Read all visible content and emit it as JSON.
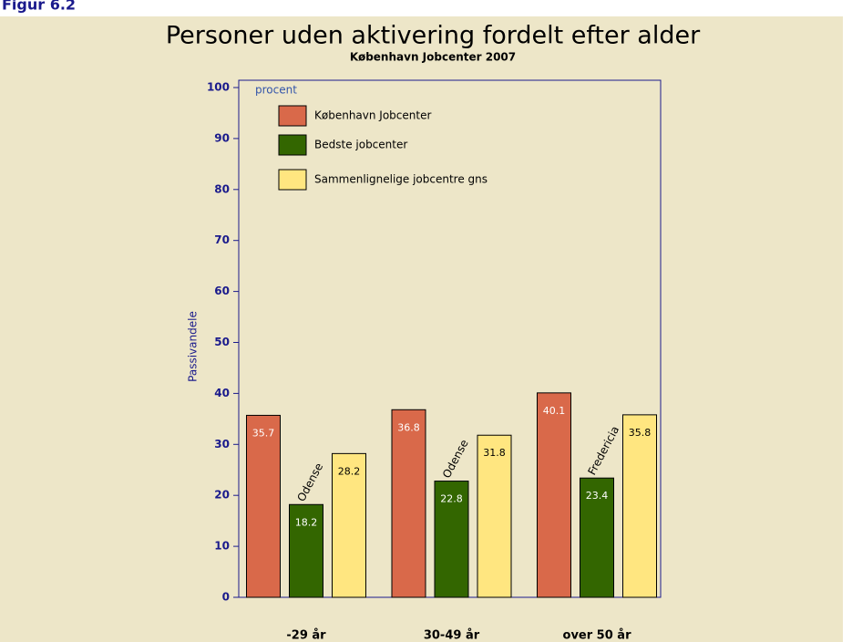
{
  "figure_label": "Figur 6.2",
  "chart_data": {
    "type": "bar",
    "title": "Personer uden aktivering fordelt efter alder",
    "subtitle": "København Jobcenter 2007",
    "y_label": "Passivandele",
    "y_unit": "procent",
    "categories": [
      "-29 år",
      "30-49 år",
      "over 50 år"
    ],
    "series": [
      {
        "name": "København Jobcenter",
        "color": "#d9694a",
        "values": [
          35.7,
          36.8,
          40.1
        ]
      },
      {
        "name": "Bedste jobcenter",
        "color": "#336600",
        "values": [
          18.2,
          22.8,
          23.4
        ],
        "annotations": [
          "Odense",
          "Odense",
          "Fredericia"
        ]
      },
      {
        "name": "Sammenlignelige jobcentre gns",
        "color": "#ffe680",
        "values": [
          28.2,
          31.8,
          35.8
        ]
      }
    ],
    "ylim": [
      0,
      100
    ],
    "yticks": [
      0,
      10,
      20,
      30,
      40,
      50,
      60,
      70,
      80,
      90,
      100
    ],
    "legend": "top-left"
  }
}
